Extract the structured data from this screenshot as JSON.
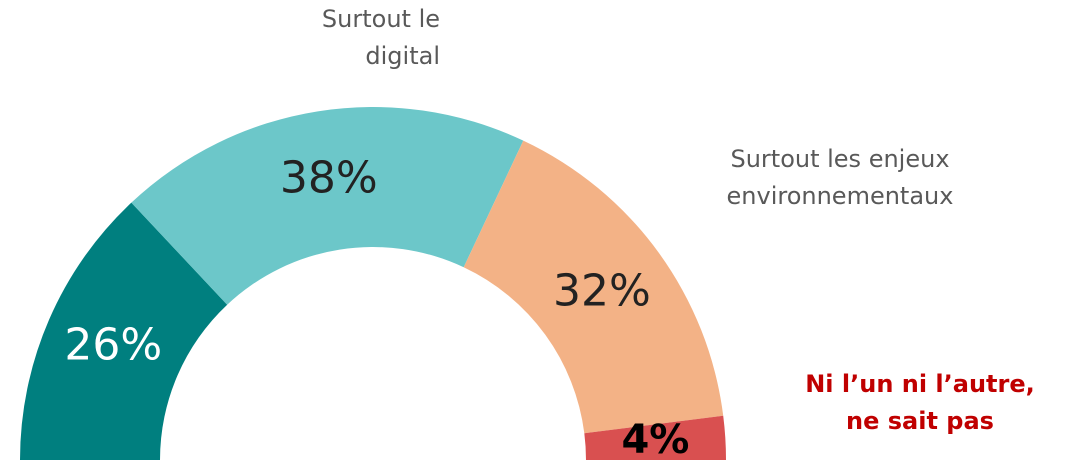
{
  "chart_data": {
    "type": "half-donut",
    "categories": [
      null,
      [
        "Surtout le",
        "digital"
      ],
      [
        "Surtout les enjeux",
        "environnementaux"
      ],
      [
        "Ni l’un ni l’autre,",
        "ne sait pas"
      ]
    ],
    "values": [
      26,
      38,
      32,
      4
    ],
    "value_labels": [
      "26%",
      "38%",
      "32%",
      "4%"
    ],
    "colors": [
      "#007f7f",
      "#6cc7c9",
      "#f3b286",
      "#d95050"
    ]
  }
}
